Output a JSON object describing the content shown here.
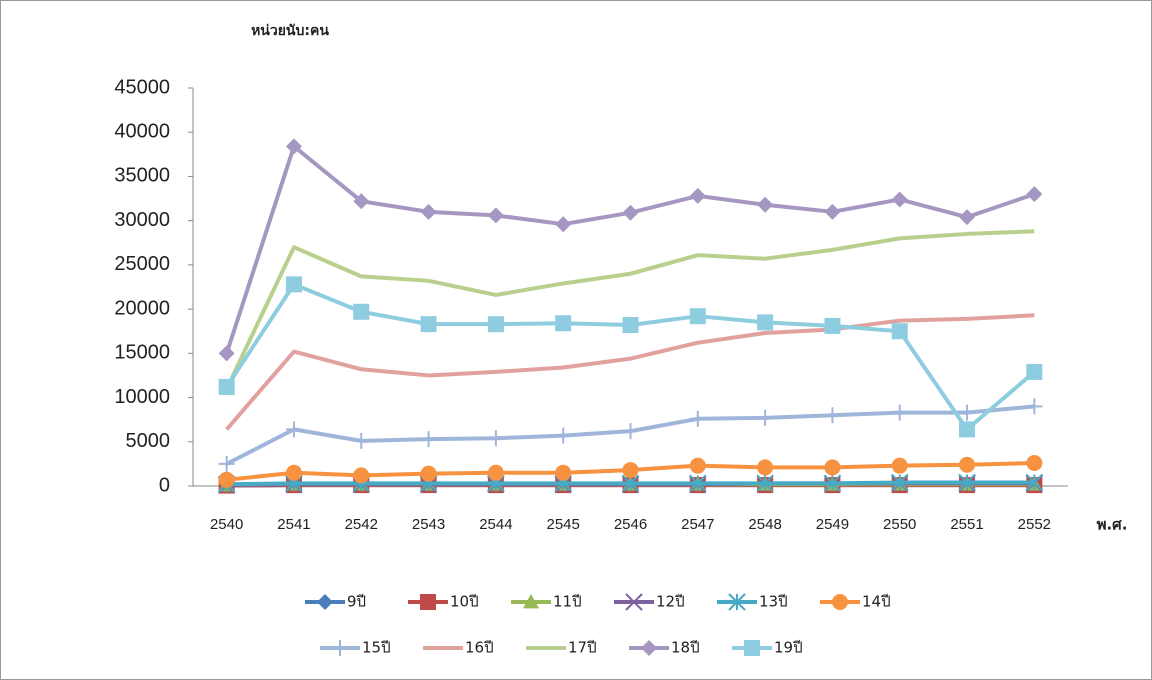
{
  "chart_data": {
    "type": "line",
    "y_label": "หน่วยนับ:คน",
    "x_label": "พ.ศ.",
    "categories": [
      "2540",
      "2541",
      "2542",
      "2543",
      "2544",
      "2545",
      "2546",
      "2547",
      "2548",
      "2549",
      "2550",
      "2551",
      "2552"
    ],
    "ylim": [
      0,
      45000
    ],
    "yticks": [
      0,
      5000,
      10000,
      15000,
      20000,
      25000,
      30000,
      35000,
      40000,
      45000
    ],
    "series": [
      {
        "name": "9ปี",
        "color": "#4a7ebb",
        "marker": "diamond",
        "values": [
          50,
          100,
          100,
          100,
          100,
          100,
          100,
          100,
          100,
          100,
          100,
          100,
          100
        ]
      },
      {
        "name": "10ปี",
        "color": "#be4b48",
        "marker": "square",
        "values": [
          50,
          100,
          100,
          100,
          100,
          100,
          100,
          100,
          100,
          100,
          100,
          100,
          100
        ]
      },
      {
        "name": "11ปี",
        "color": "#98b954",
        "marker": "triangle",
        "values": [
          100,
          200,
          200,
          200,
          200,
          200,
          200,
          200,
          200,
          200,
          200,
          200,
          200
        ]
      },
      {
        "name": "12ปี",
        "color": "#7d60a0",
        "marker": "x",
        "values": [
          100,
          200,
          200,
          200,
          200,
          200,
          200,
          200,
          300,
          300,
          300,
          300,
          300
        ]
      },
      {
        "name": "13ปี",
        "color": "#46aac5",
        "marker": "star",
        "values": [
          200,
          300,
          300,
          300,
          300,
          300,
          300,
          300,
          300,
          300,
          400,
          400,
          400
        ]
      },
      {
        "name": "14ปี",
        "color": "#f69240",
        "marker": "circle",
        "values": [
          700,
          1500,
          1200,
          1400,
          1500,
          1500,
          1800,
          2300,
          2100,
          2100,
          2300,
          2400,
          2600
        ]
      },
      {
        "name": "15ปี",
        "color": "#9fb5da",
        "marker": "plus",
        "values": [
          2500,
          6400,
          5100,
          5300,
          5400,
          5700,
          6200,
          7600,
          7700,
          8000,
          8300,
          8300,
          9000
        ]
      },
      {
        "name": "16ปี",
        "color": "#e0a19f",
        "marker": "none",
        "values": [
          6400,
          15200,
          13200,
          12500,
          12900,
          13400,
          14400,
          16200,
          17300,
          17700,
          18700,
          18900,
          19300
        ]
      },
      {
        "name": "17ปี",
        "color": "#b8cf8d",
        "marker": "none",
        "values": [
          11000,
          27000,
          23700,
          23200,
          21600,
          22900,
          24000,
          26100,
          25700,
          26700,
          28000,
          28500,
          28800
        ]
      },
      {
        "name": "18ปี",
        "color": "#a597c1",
        "marker": "diamond",
        "values": [
          15000,
          38400,
          32200,
          31000,
          30600,
          29600,
          30900,
          32800,
          31800,
          31000,
          32400,
          30400,
          33000
        ]
      },
      {
        "name": "19ปี",
        "color": "#8ecde0",
        "marker": "square",
        "values": [
          11200,
          22800,
          19700,
          18300,
          18300,
          18400,
          18200,
          19200,
          18500,
          18100,
          17500,
          6400,
          12900
        ]
      }
    ]
  }
}
